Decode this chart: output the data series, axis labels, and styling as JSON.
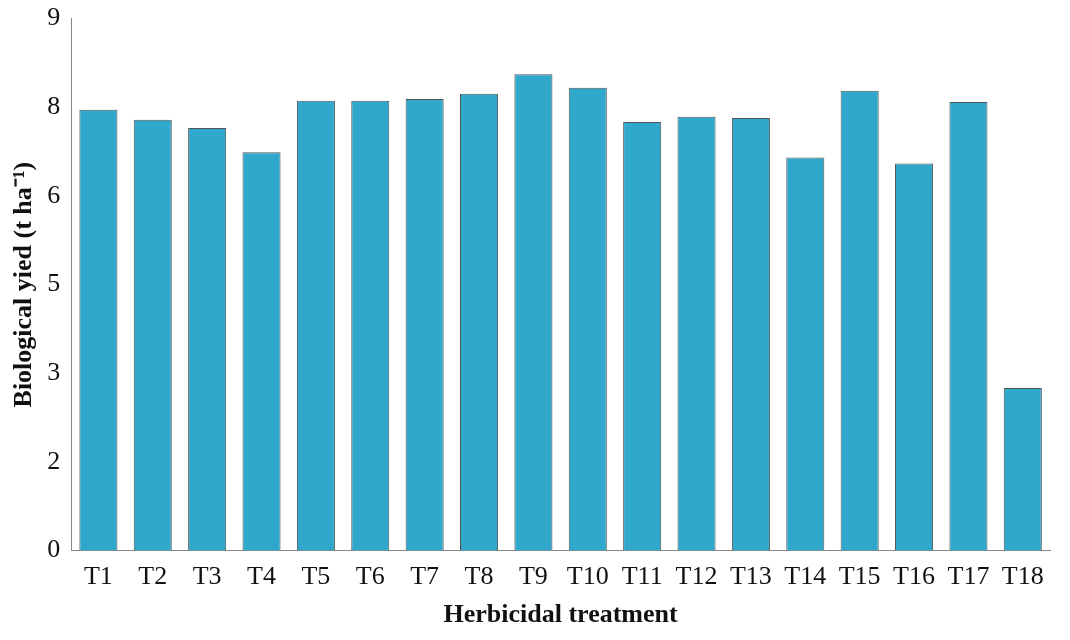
{
  "chart_data": {
    "type": "bar",
    "xlabel": "Herbicidal treatment",
    "ylabel": "Biological yied (t ha⁻¹)",
    "categories": [
      "T1",
      "T2",
      "T3",
      "T4",
      "T5",
      "T6",
      "T7",
      "T8",
      "T9",
      "T10",
      "T11",
      "T12",
      "T13",
      "T14",
      "T15",
      "T16",
      "T17",
      "T18"
    ],
    "values": [
      7.46,
      7.29,
      7.15,
      6.74,
      7.61,
      7.61,
      7.64,
      7.73,
      8.06,
      7.83,
      7.25,
      7.34,
      7.32,
      6.65,
      7.78,
      6.55,
      7.59,
      2.75
    ],
    "color": "#30a8cc",
    "ylim": [
      0,
      9
    ],
    "yticks": [
      0,
      {
        "value": 1.5,
        "label": "2"
      },
      3,
      {
        "value": 4.5,
        "label": "5"
      },
      6,
      {
        "value": 7.5,
        "label": "8"
      },
      9
    ],
    "grid": false
  }
}
